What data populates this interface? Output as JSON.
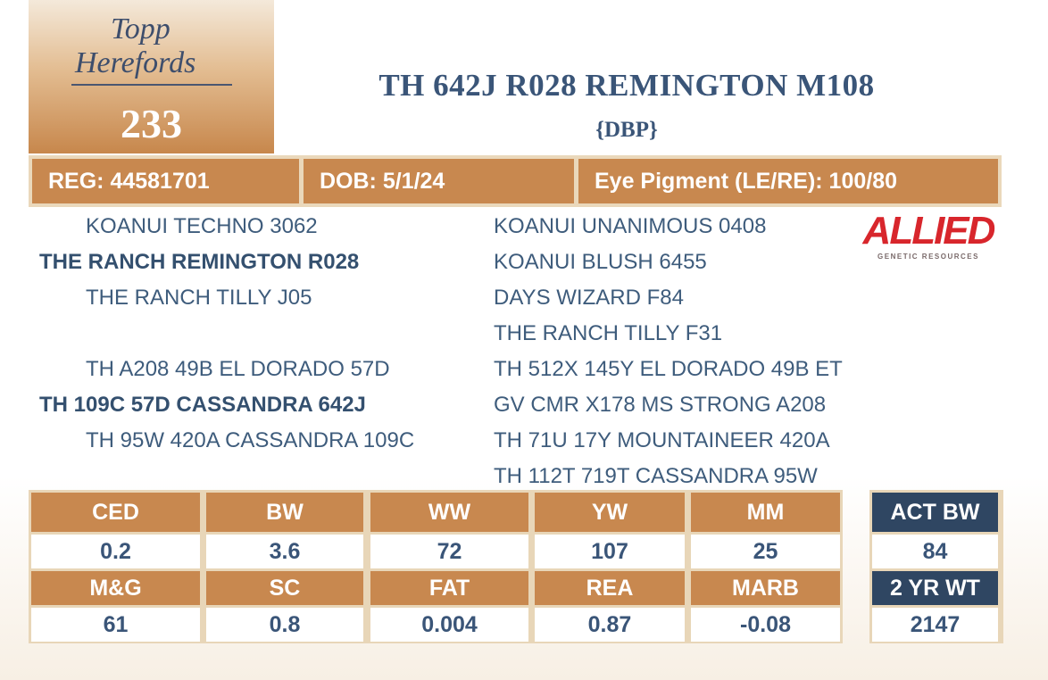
{
  "logo": {
    "line1": "Topp",
    "line2": "Herefords"
  },
  "lot": "233",
  "title": "TH 642J R028 REMINGTON M108",
  "subtitle": "{DBP}",
  "info": [
    "REG: 44581701",
    "DOB: 5/1/24",
    "Eye Pigment (LE/RE): 100/80"
  ],
  "pedigree": {
    "sire": {
      "sire": "KOANUI TECHNO 3062",
      "name": "THE RANCH REMINGTON R028",
      "dam": "THE RANCH TILLY J05"
    },
    "dam": {
      "sire": "TH A208 49B EL DORADO 57D",
      "name": "TH 109C 57D CASSANDRA 642J",
      "dam": "TH 95W 420A CASSANDRA 109C"
    },
    "grandparents": [
      "KOANUI UNANIMOUS 0408",
      "KOANUI BLUSH 6455",
      "DAYS WIZARD F84",
      "THE RANCH TILLY F31",
      "TH 512X 145Y EL DORADO 49B ET",
      "GV CMR X178 MS STRONG A208",
      "TH 71U 17Y MOUNTAINEER 420A",
      "TH 112T 719T CASSANDRA 95W"
    ]
  },
  "sponsor": {
    "name": "ALLIED",
    "tagline": "GENETIC RESOURCES"
  },
  "epds": [
    {
      "headers": [
        "CED",
        "BW",
        "WW",
        "YW",
        "MM"
      ],
      "values": [
        "0.2",
        "3.6",
        "72",
        "107",
        "25"
      ]
    },
    {
      "headers": [
        "M&G",
        "SC",
        "FAT",
        "REA",
        "MARB"
      ],
      "values": [
        "61",
        "0.8",
        "0.004",
        "0.87",
        "-0.08"
      ]
    }
  ],
  "actuals": [
    {
      "label": "ACT BW",
      "value": "84"
    },
    {
      "label": "2 YR WT",
      "value": "2147"
    }
  ]
}
